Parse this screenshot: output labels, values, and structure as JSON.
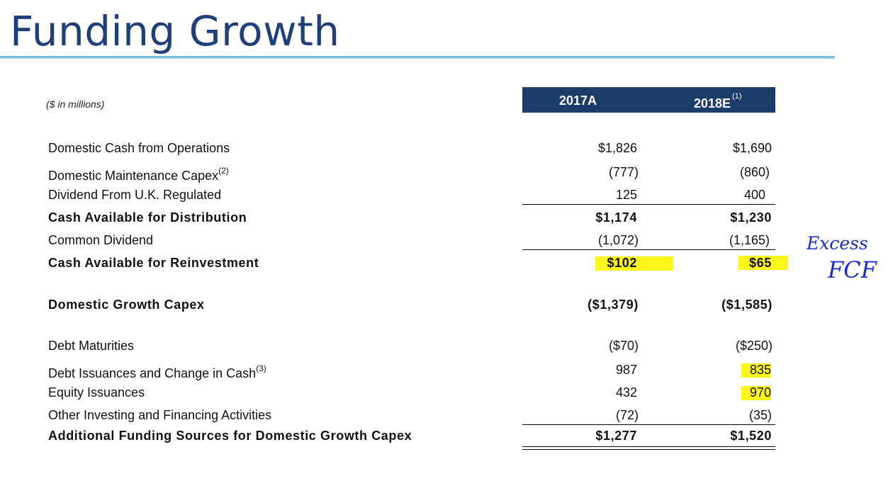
{
  "title": "Funding Growth",
  "units": "($ in millions)",
  "columns": [
    {
      "label": "2017A",
      "note": ""
    },
    {
      "label": "2018E",
      "note": "(1)"
    }
  ],
  "rows": [
    {
      "label": "Domestic Cash from Operations",
      "sup": "",
      "v1": "$1,826",
      "v2": "$1,690"
    },
    {
      "label": "Domestic Maintenance Capex",
      "sup": "(2)",
      "v1": "(777)",
      "v2": "(860)"
    },
    {
      "label": "Dividend From U.K. Regulated",
      "sup": "",
      "v1": "125",
      "v2": "400"
    },
    {
      "label": "Cash Available for Distribution",
      "sup": "",
      "v1": "$1,174",
      "v2": "$1,230"
    },
    {
      "label": "Common Dividend",
      "sup": "",
      "v1": "(1,072)",
      "v2": "(1,165)"
    },
    {
      "label": "Cash Available for Reinvestment",
      "sup": "",
      "v1": "$102",
      "v2": "$65"
    },
    {
      "label": "Domestic Growth Capex",
      "sup": "",
      "v1": "($1,379)",
      "v2": "($1,585)"
    },
    {
      "label": "Debt Maturities",
      "sup": "",
      "v1": "($70)",
      "v2": "($250)"
    },
    {
      "label": "Debt Issuances and Change in Cash",
      "sup": "(3)",
      "v1": "987",
      "v2": "835"
    },
    {
      "label": "Equity Issuances",
      "sup": "",
      "v1": "432",
      "v2": "970"
    },
    {
      "label": "Other Investing and Financing Activities",
      "sup": "",
      "v1": "(72)",
      "v2": "(35)"
    },
    {
      "label": "Additional Funding Sources for Domestic Growth Capex",
      "sup": "",
      "v1": "$1,277",
      "v2": "$1,520"
    }
  ],
  "annotation": {
    "line1": "Excess",
    "line2": "FCF",
    "ink_color": "#1a2bd6"
  },
  "highlight_color": "#fcf51a",
  "header_color": "#1c3c6a",
  "title_color": "#1f3f7a"
}
